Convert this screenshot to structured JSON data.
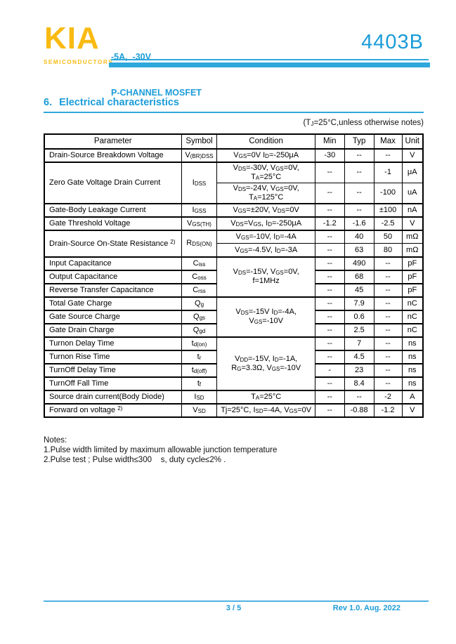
{
  "colors": {
    "accent_blue": "#1B9CD8",
    "brand_gold": "#F9BA12"
  },
  "header": {
    "brand": "KIA",
    "brand_sub": "SEMICONDUCTORS",
    "rating_line": "-5A,  -30V",
    "device_line": "P-CHANNEL MOSFET",
    "part_number": "4403B"
  },
  "section": {
    "number": "6.",
    "title": "Electrical characteristics"
  },
  "condition_note_html": "(T<sub>J</sub>=25°C,unless otherwise notes)",
  "table": {
    "headers": {
      "parameter": "Parameter",
      "symbol": "Symbol",
      "condition": "Condition",
      "min": "Min",
      "typ": "Typ",
      "max": "Max",
      "unit": "Unit"
    },
    "rows": [
      {
        "parameter": "Drain-Source Breakdown Voltage",
        "symbol": "V<sub>(BR)DSS</sub>",
        "condition": "V<sub>GS</sub>=0V I<sub>D</sub>=-250μA",
        "min": "-30",
        "typ": "--",
        "max": "--",
        "unit": "V"
      },
      {
        "parameter": "Zero Gate Voltage Drain Current",
        "symbol": "I<sub>DSS</sub>",
        "condition": "V<sub>DS</sub>=-30V, V<sub>GS</sub>=0V,<br>T<sub>A</sub>=25°C",
        "min": "--",
        "typ": "--",
        "max": "-1",
        "unit": "μA"
      },
      {
        "condition": "V<sub>DS</sub>=-24V, V<sub>GS</sub>=0V,<br>T<sub>A</sub>=125°C",
        "min": "--",
        "typ": "--",
        "max": "-100",
        "unit": "uA"
      },
      {
        "parameter": "Gate-Body Leakage Current",
        "symbol": "I<sub>GSS</sub>",
        "condition": "V<sub>GS</sub>=±20V, V<sub>DS</sub>=0V",
        "min": "--",
        "typ": "--",
        "max": "±100",
        "unit": "nA"
      },
      {
        "parameter": "Gate Threshold Voltage",
        "symbol": "V<sub>GS(TH)</sub>",
        "condition": "V<sub>DS</sub>=V<sub>GS</sub>, I<sub>D</sub>=-250μA",
        "min": "-1.2",
        "typ": "-1.6",
        "max": "-2.5",
        "unit": "V"
      },
      {
        "parameter": "Drain-Source On-State Resistance <sup>2)</sup>",
        "symbol": "R<sub>DS(ON)</sub>",
        "condition": "V<sub>GS</sub>=-10V, I<sub>D</sub>=-4A",
        "min": "--",
        "typ": "40",
        "max": "50",
        "unit": "mΩ"
      },
      {
        "condition": "V<sub>GS</sub>=-4.5V, I<sub>D</sub>=-3A",
        "min": "--",
        "typ": "63",
        "max": "80",
        "unit": "mΩ"
      },
      {
        "parameter": "Input Capacitance",
        "symbol": "C<sub>iss</sub>",
        "condition": "V<sub>DS</sub>=-15V, V<sub>GS</sub>=0V,<br>f=1MHz",
        "min": "--",
        "typ": "490",
        "max": "--",
        "unit": "pF"
      },
      {
        "parameter": "Output Capacitance",
        "symbol": "C<sub>oss</sub>",
        "min": "--",
        "typ": "68",
        "max": "--",
        "unit": "pF"
      },
      {
        "parameter": "Reverse Transfer Capacitance",
        "symbol": "C<sub>rss</sub>",
        "min": "--",
        "typ": "45",
        "max": "--",
        "unit": "pF"
      },
      {
        "parameter": "Total Gate Charge",
        "symbol": "Q<sub>g</sub>",
        "condition": "V<sub>DS</sub>=-15V I<sub>D</sub>=-4A,<br>V<sub>GS</sub>=-10V",
        "min": "--",
        "typ": "7.9",
        "max": "--",
        "unit": "nC"
      },
      {
        "parameter": "Gate Source Charge",
        "symbol": "Q<sub>gs</sub>",
        "min": "--",
        "typ": "0.6",
        "max": "--",
        "unit": "nC"
      },
      {
        "parameter": "Gate Drain Charge",
        "symbol": "Q<sub>gd</sub>",
        "min": "--",
        "typ": "2.5",
        "max": "--",
        "unit": "nC"
      },
      {
        "parameter": "Turnon Delay Time",
        "symbol": "t<sub>d(on)</sub>",
        "condition": "V<sub>DD</sub>=-15V, I<sub>D</sub>=-1A,<br>R<sub>G</sub>=3.3Ω, V<sub>GS</sub>=-10V",
        "min": "--",
        "typ": "7",
        "max": "--",
        "unit": "ns"
      },
      {
        "parameter": "Turnon Rise Time",
        "symbol": "t<sub>r</sub>",
        "min": "--",
        "typ": "4.5",
        "max": "--",
        "unit": "ns"
      },
      {
        "parameter": "TurnOff Delay Time",
        "symbol": "t<sub>d(off)</sub>",
        "min": "-",
        "typ": "23",
        "max": "--",
        "unit": "ns"
      },
      {
        "parameter": "TurnOff Fall Time",
        "symbol": "t<sub>f</sub>",
        "min": "--",
        "typ": "8.4",
        "max": "--",
        "unit": "ns"
      },
      {
        "parameter": "Source drain current(Body Diode)",
        "symbol": "I<sub>SD</sub>",
        "condition": "T<sub>A</sub>=25°C",
        "min": "--",
        "typ": "--",
        "max": "-2",
        "unit": "A"
      },
      {
        "parameter": "Forward on voltage <sup>2)</sup>",
        "symbol": "V<sub>SD</sub>",
        "condition": "Tj=25°C, I<sub>SD</sub>=-4A, V<sub>GS</sub>=0V",
        "min": "--",
        "typ": "-0.88",
        "max": "-1.2",
        "unit": "V"
      }
    ]
  },
  "notes": {
    "title": "Notes:",
    "item1": "1.Pulse width limited by maximum allowable junction temperature",
    "item2": "2.Pulse test ; Pulse width≤300    s, duty cycle≤2% ."
  },
  "footer": {
    "page_indicator": "3 / 5",
    "revision": "Rev 1.0. Aug. 2022"
  }
}
